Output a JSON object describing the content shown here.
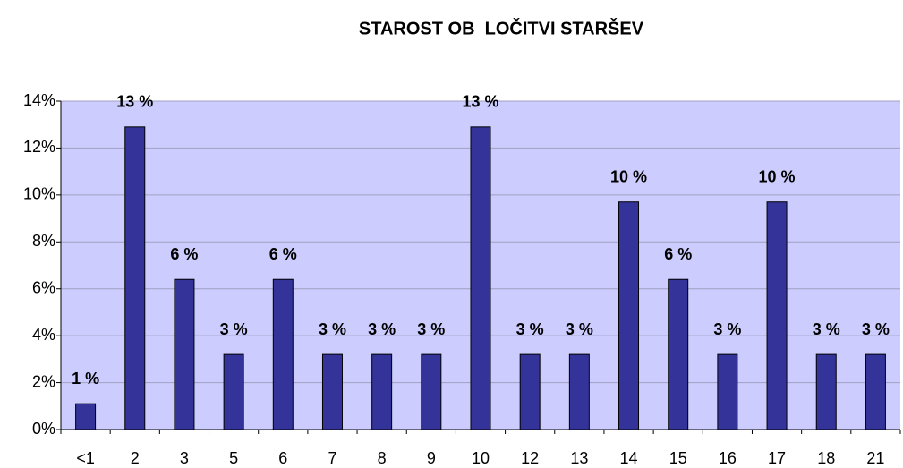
{
  "chart_data": {
    "type": "bar",
    "title": "STAROST OB  LOČITVI STARŠEV",
    "categories": [
      "<1",
      "2",
      "3",
      "5",
      "6",
      "7",
      "8",
      "9",
      "10",
      "12",
      "13",
      "14",
      "15",
      "16",
      "17",
      "18",
      "21"
    ],
    "values": [
      1.1,
      12.9,
      6.4,
      3.2,
      6.4,
      3.2,
      3.2,
      3.2,
      12.9,
      3.2,
      3.2,
      9.7,
      6.4,
      3.2,
      9.7,
      3.2,
      3.2
    ],
    "value_labels": [
      "1 %",
      "13 %",
      "6 %",
      "3 %",
      "6 %",
      "3 %",
      "3 %",
      "3 %",
      "13 %",
      "3 %",
      "3 %",
      "10 %",
      "6 %",
      "3 %",
      "10 %",
      "3 %",
      "3 %"
    ],
    "color": "#333399",
    "ylim": [
      0,
      14
    ],
    "yticks": [
      {
        "value": 0,
        "label": "0%"
      },
      {
        "value": 2,
        "label": "2%"
      },
      {
        "value": 4,
        "label": "4%"
      },
      {
        "value": 6,
        "label": "6%"
      },
      {
        "value": 8,
        "label": "8%"
      },
      {
        "value": 10,
        "label": "10%"
      },
      {
        "value": 12,
        "label": "12%"
      },
      {
        "value": 14,
        "label": "14%"
      }
    ],
    "grid": true
  }
}
